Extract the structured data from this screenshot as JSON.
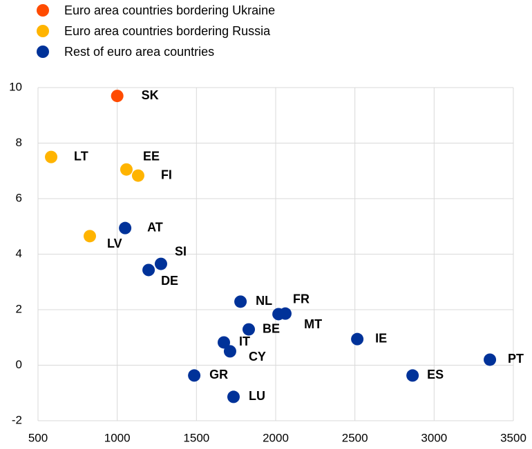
{
  "chart_data": {
    "type": "scatter",
    "series": [
      {
        "name": "Euro area countries bordering Ukraine",
        "color": "#ff4b00",
        "x": [
          1000
        ],
        "values": [
          9.7
        ],
        "labels": [
          "SK"
        ]
      },
      {
        "name": "Euro area countries bordering Russia",
        "color": "#ffb400",
        "x": [
          583,
          1058,
          1132,
          827
        ],
        "values": [
          7.5,
          7.05,
          6.83,
          4.65
        ],
        "labels": [
          "LT",
          "EE",
          "FI",
          "LV"
        ]
      },
      {
        "name": "Rest of euro area countries",
        "color": "#003299",
        "x": [
          1050,
          1276,
          1198,
          1778,
          2061,
          2018,
          1830,
          2515,
          1673,
          1712,
          3352,
          1486,
          2864,
          1734
        ],
        "values": [
          4.94,
          3.65,
          3.43,
          2.29,
          1.86,
          1.84,
          1.29,
          0.94,
          0.82,
          0.5,
          0.2,
          -0.37,
          -0.37,
          -1.14
        ],
        "labels": [
          "AT",
          "SI",
          "DE",
          "NL",
          "FR",
          "MT",
          "BE",
          "IE",
          "IT",
          "CY",
          "PT",
          "GR",
          "ES",
          "LU"
        ]
      }
    ],
    "xlim": [
      500,
      3500
    ],
    "xticks": [
      500,
      1000,
      1500,
      2000,
      2500,
      3000,
      3500
    ],
    "ylim": [
      -2,
      10
    ],
    "yticks": [
      -2,
      0,
      2,
      4,
      6,
      8,
      10
    ],
    "grid": true
  }
}
